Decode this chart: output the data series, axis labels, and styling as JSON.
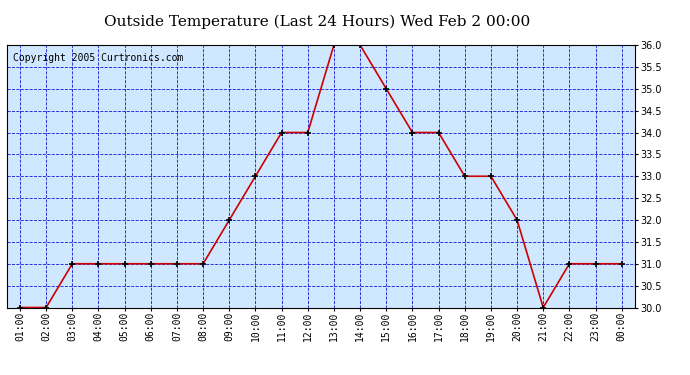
{
  "title": "Outside Temperature (Last 24 Hours) Wed Feb 2 00:00",
  "copyright": "Copyright 2005 Curtronics.com",
  "x_labels": [
    "01:00",
    "02:00",
    "03:00",
    "04:00",
    "05:00",
    "06:00",
    "07:00",
    "08:00",
    "09:00",
    "10:00",
    "11:00",
    "12:00",
    "13:00",
    "14:00",
    "15:00",
    "16:00",
    "17:00",
    "18:00",
    "19:00",
    "20:00",
    "21:00",
    "22:00",
    "23:00",
    "00:00"
  ],
  "y_values": [
    30.0,
    30.0,
    31.0,
    31.0,
    31.0,
    31.0,
    31.0,
    31.0,
    32.0,
    33.0,
    34.0,
    34.0,
    36.0,
    36.0,
    35.0,
    34.0,
    34.0,
    33.0,
    33.0,
    32.0,
    30.0,
    31.0,
    31.0,
    31.0
  ],
  "ylim": [
    30.0,
    36.0
  ],
  "yticks": [
    30.0,
    30.5,
    31.0,
    31.5,
    32.0,
    32.5,
    33.0,
    33.5,
    34.0,
    34.5,
    35.0,
    35.5,
    36.0
  ],
  "line_color": "#cc0000",
  "marker": "+",
  "marker_color": "#000000",
  "bg_color": "#d0e8ff",
  "grid_color": "#0000cc",
  "title_fontsize": 11,
  "copyright_fontsize": 7,
  "tick_fontsize": 7,
  "fig_width": 6.9,
  "fig_height": 3.75,
  "dpi": 100
}
